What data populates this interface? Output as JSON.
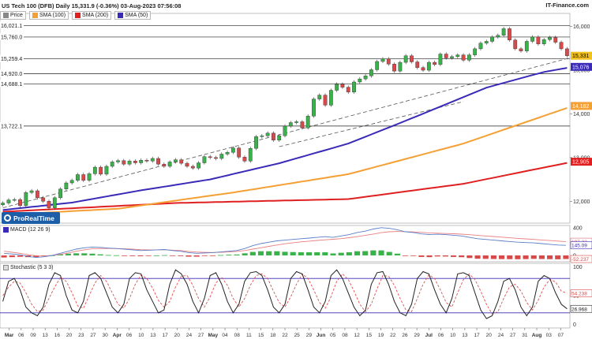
{
  "header": {
    "title": "US Tech 100 (DFB) Daily 15,331.9 (-0.36%) 03-Aug-2023 07:56:08",
    "brand": "IT-Finance.com"
  },
  "legend": {
    "items": [
      {
        "label": "Price",
        "color": "#888888"
      },
      {
        "label": "SMA (100)",
        "color": "#f5a034"
      },
      {
        "label": "SMA (200)",
        "color": "#e02020"
      },
      {
        "label": "SMA (50)",
        "color": "#3a2ab8"
      }
    ]
  },
  "logo": {
    "text": "ProRealTime"
  },
  "colors": {
    "up": "#39b24a",
    "down": "#d84a4a",
    "sma50": "#3a2ab8",
    "sma100": "#f5a034",
    "sma200": "#e02020",
    "macd": "#5a7ec8",
    "signal": "#e88080",
    "stoch_k": "#222222",
    "stoch_d": "#e05050"
  },
  "macd_panel": {
    "title": "MACD (12 26 9)",
    "ticks": [
      "400",
      "0"
    ],
    "labels": [
      "197.32",
      "145.09",
      "-52.237"
    ]
  },
  "stoch_panel": {
    "title": "Stochastic (5 3 3)",
    "ticks": [
      "100",
      "50",
      "0"
    ],
    "labels": [
      "54.238",
      "26.968"
    ]
  },
  "chart_data": [
    {
      "type": "candlestick",
      "title": "US Tech 100 (DFB) Daily",
      "y_ticks": [
        "16,000",
        "15,000",
        "14,000",
        "13,000",
        "12,000"
      ],
      "y_range": [
        11500,
        16300
      ],
      "left_levels": [
        "16,021.1",
        "15,760.0",
        "15,259.4",
        "14,920.0",
        "14,688.1",
        "13,722.1"
      ],
      "right_labels": [
        {
          "text": "15,331",
          "value": 15331,
          "color": "#f0c020"
        },
        {
          "text": "15,076",
          "value": 15076,
          "color": "#3a2ab8"
        },
        {
          "text": "14,182",
          "value": 14182,
          "color": "#f5a034"
        },
        {
          "text": "12,905",
          "value": 12905,
          "color": "#e02020"
        }
      ],
      "x_labels": [
        "Mar",
        "06",
        "09",
        "13",
        "16",
        "20",
        "23",
        "27",
        "30",
        "Apr",
        "06",
        "10",
        "13",
        "17",
        "20",
        "24",
        "27",
        "May",
        "04",
        "08",
        "11",
        "15",
        "18",
        "22",
        "25",
        "29",
        "Jun",
        "05",
        "08",
        "12",
        "15",
        "19",
        "22",
        "26",
        "29",
        "Jul",
        "06",
        "10",
        "13",
        "17",
        "20",
        "24",
        "27",
        "31",
        "Aug",
        "03",
        "07"
      ],
      "bold_x_labels": [
        "Mar",
        "Apr",
        "May",
        "Jun",
        "Jul",
        "Aug"
      ],
      "closes": [
        11960,
        12030,
        12040,
        11900,
        12200,
        12240,
        12080,
        12000,
        11850,
        12080,
        12280,
        12420,
        12480,
        12610,
        12480,
        12630,
        12780,
        12620,
        12800,
        12900,
        12930,
        12850,
        12920,
        12880,
        12940,
        12920,
        12980,
        12850,
        12800,
        12900,
        12950,
        12870,
        12800,
        12760,
        12880,
        13020,
        13000,
        12980,
        13080,
        13120,
        13220,
        13010,
        12920,
        13210,
        13480,
        13500,
        13560,
        13400,
        13500,
        13720,
        13800,
        13820,
        13680,
        13950,
        14340,
        14430,
        14200,
        14540,
        14680,
        14610,
        14500,
        14730,
        14800,
        14870,
        15010,
        15200,
        15260,
        15140,
        14980,
        15180,
        15330,
        15190,
        15060,
        15000,
        15180,
        15130,
        15370,
        15280,
        15310,
        15350,
        15230,
        15350,
        15490,
        15620,
        15660,
        15760,
        15800,
        15950,
        15690,
        15490,
        15440,
        15660,
        15760,
        15600,
        15700,
        15750,
        15640,
        15490,
        15331
      ],
      "sma50": [
        [
          0,
          11800
        ],
        [
          12,
          11970
        ],
        [
          24,
          12250
        ],
        [
          36,
          12500
        ],
        [
          48,
          12870
        ],
        [
          60,
          13320
        ],
        [
          72,
          13950
        ],
        [
          84,
          14600
        ],
        [
          94,
          14960
        ],
        [
          99,
          15076
        ]
      ],
      "sma100": [
        [
          0,
          11690
        ],
        [
          20,
          11830
        ],
        [
          40,
          12200
        ],
        [
          60,
          12620
        ],
        [
          80,
          13320
        ],
        [
          99,
          14182
        ]
      ],
      "sma200": [
        [
          0,
          11760
        ],
        [
          30,
          11960
        ],
        [
          60,
          12050
        ],
        [
          80,
          12400
        ],
        [
          99,
          12905
        ]
      ],
      "trendline": [
        [
          0,
          11850
        ],
        [
          99,
          15300
        ]
      ],
      "trendline2": [
        [
          48,
          13250
        ],
        [
          80,
          14280
        ]
      ],
      "y_label": "",
      "x_label": ""
    },
    {
      "type": "macd",
      "macd_line": [
        30,
        20,
        10,
        -15,
        -30,
        -20,
        0,
        30,
        60,
        90,
        110,
        120,
        115,
        105,
        100,
        90,
        80,
        70,
        75,
        80,
        85,
        70,
        60,
        40,
        30,
        35,
        40,
        50,
        60,
        70,
        100,
        140,
        170,
        190,
        210,
        220,
        230,
        240,
        250,
        260,
        270,
        260,
        280,
        300,
        330,
        350,
        380,
        400,
        390,
        370,
        340,
        330,
        310,
        300,
        305,
        300,
        290,
        280,
        260,
        240,
        230,
        220,
        210,
        200,
        190,
        185,
        180,
        170,
        160,
        150,
        145
      ],
      "signal_line": [
        60,
        45,
        30,
        10,
        -5,
        -10,
        0,
        15,
        35,
        60,
        80,
        95,
        100,
        100,
        98,
        95,
        90,
        82,
        80,
        80,
        81,
        76,
        70,
        58,
        48,
        44,
        42,
        45,
        50,
        57,
        70,
        90,
        110,
        130,
        150,
        168,
        182,
        195,
        205,
        215,
        225,
        232,
        242,
        255,
        270,
        288,
        308,
        328,
        340,
        345,
        342,
        338,
        332,
        325,
        320,
        316,
        312,
        306,
        298,
        288,
        280,
        272,
        263,
        254,
        245,
        238,
        230,
        222,
        214,
        206,
        197
      ],
      "histogram": [
        -30,
        -25,
        -20,
        -25,
        -25,
        -10,
        0,
        15,
        25,
        30,
        30,
        25,
        15,
        5,
        2,
        -5,
        -10,
        -12,
        -5,
        0,
        4,
        -6,
        -10,
        -18,
        -18,
        -9,
        -2,
        5,
        10,
        13,
        30,
        50,
        60,
        60,
        60,
        52,
        48,
        45,
        45,
        45,
        45,
        28,
        38,
        45,
        60,
        62,
        72,
        72,
        50,
        25,
        -2,
        -8,
        -22,
        -25,
        -15,
        -16,
        -22,
        -26,
        -38,
        -48,
        -50,
        -52,
        -53,
        -54,
        -55,
        -53,
        -50,
        -52,
        -54,
        -56,
        -52
      ]
    },
    {
      "type": "stochastic",
      "k": [
        40,
        75,
        80,
        60,
        30,
        20,
        15,
        30,
        70,
        90,
        85,
        50,
        25,
        20,
        40,
        85,
        90,
        80,
        55,
        30,
        20,
        35,
        80,
        90,
        88,
        60,
        40,
        20,
        25,
        70,
        95,
        88,
        70,
        40,
        20,
        45,
        85,
        90,
        70,
        40,
        20,
        35,
        75,
        90,
        92,
        85,
        60,
        30,
        20,
        35,
        80,
        92,
        88,
        60,
        30,
        20,
        40,
        85,
        95,
        80,
        55,
        30,
        15,
        25,
        70,
        90,
        92,
        70,
        40,
        20,
        15,
        35,
        80,
        92,
        88,
        60,
        35,
        20,
        45,
        88,
        90,
        85,
        55,
        25,
        10,
        15,
        40,
        75,
        80,
        60,
        30,
        15,
        30,
        75,
        85,
        80,
        55,
        35,
        27
      ],
      "d": [
        50,
        65,
        75,
        72,
        55,
        35,
        22,
        25,
        45,
        65,
        82,
        75,
        55,
        32,
        28,
        50,
        72,
        85,
        75,
        55,
        35,
        28,
        45,
        70,
        86,
        80,
        63,
        42,
        30,
        40,
        65,
        84,
        85,
        68,
        45,
        30,
        48,
        72,
        82,
        68,
        45,
        30,
        45,
        68,
        85,
        88,
        80,
        58,
        38,
        30,
        48,
        70,
        88,
        80,
        60,
        38,
        28,
        48,
        75,
        88,
        78,
        58,
        35,
        22,
        35,
        62,
        85,
        84,
        68,
        45,
        25,
        22,
        45,
        70,
        86,
        80,
        60,
        38,
        30,
        55,
        78,
        88,
        78,
        58,
        35,
        18,
        22,
        45,
        65,
        70,
        58,
        38,
        25,
        42,
        65,
        78,
        74,
        58,
        54
      ]
    }
  ]
}
